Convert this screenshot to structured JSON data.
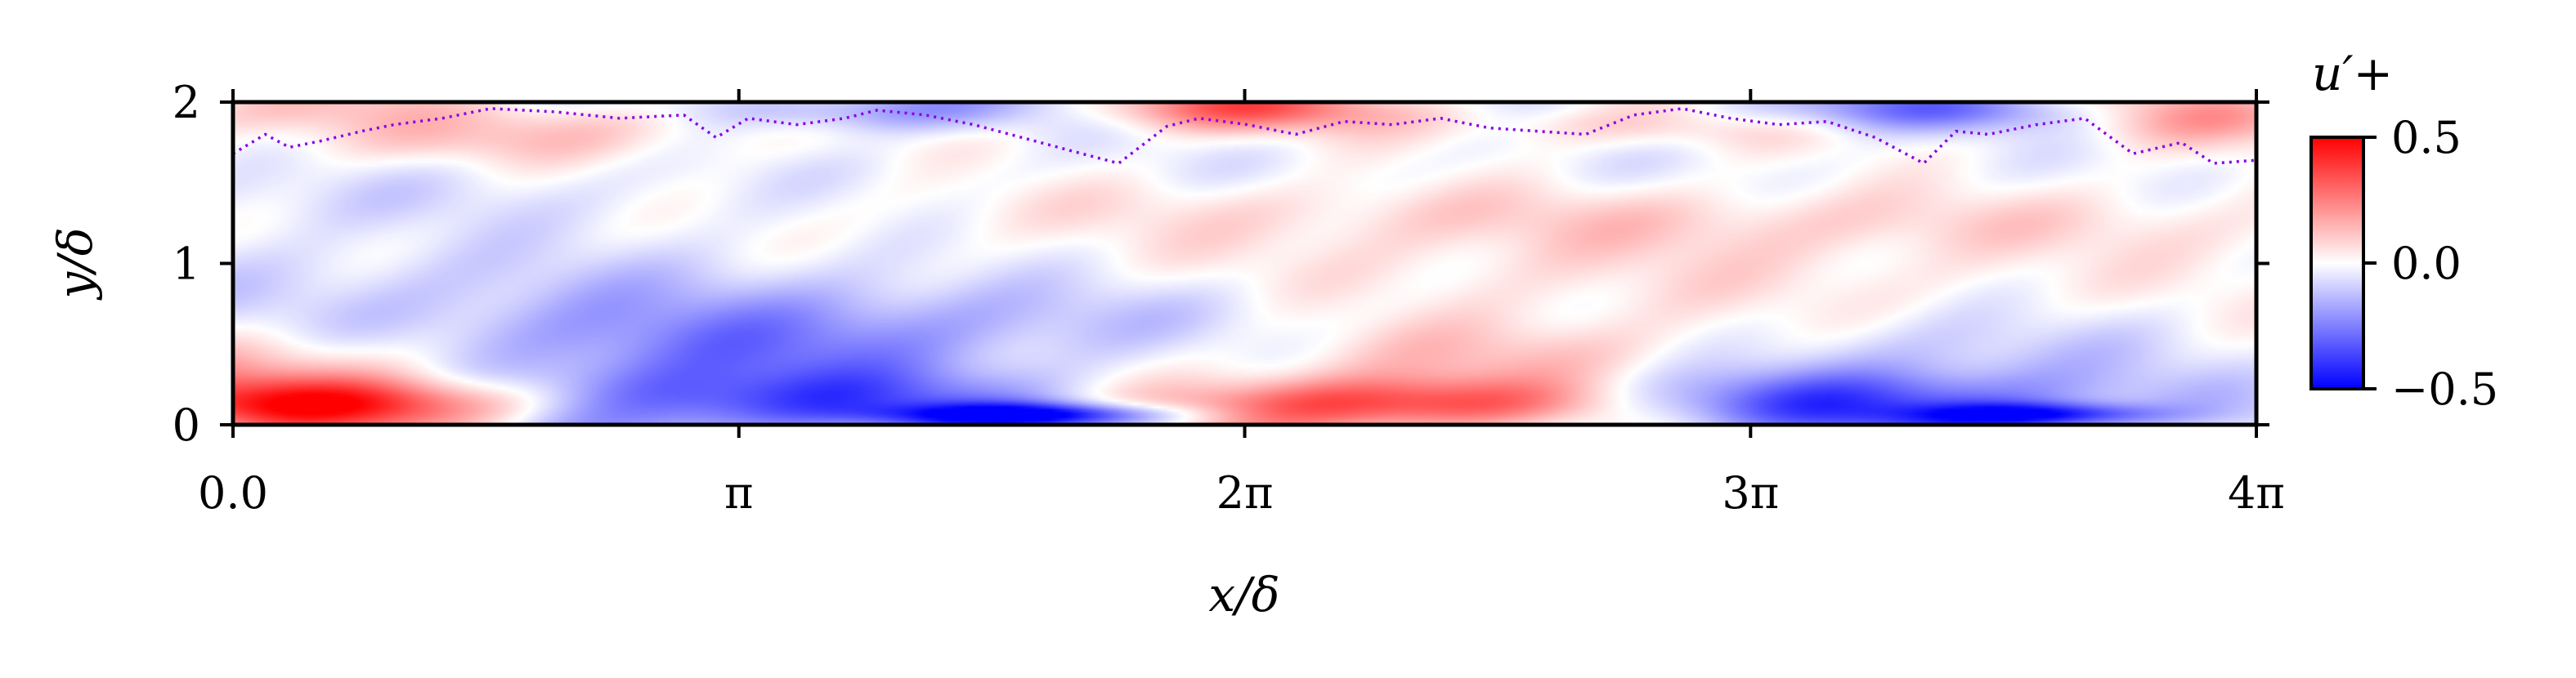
{
  "chart_data": {
    "type": "heatmap",
    "title": "",
    "xlabel": "x/δ",
    "ylabel": "y/δ",
    "xlim": [
      0,
      12.566
    ],
    "ylim": [
      0,
      2
    ],
    "x_tick_labels": [
      "0.0",
      "π",
      "2π",
      "3π",
      "4π"
    ],
    "x_tick_values": [
      0,
      3.1416,
      6.2832,
      9.4248,
      12.566
    ],
    "y_tick_labels": [
      "0",
      "1",
      "2"
    ],
    "y_tick_values": [
      0,
      1,
      2
    ],
    "colormap": [
      "#0000ff",
      "#ffffff",
      "#ff0000"
    ],
    "colorbar": {
      "title": "u′+",
      "range": [
        -0.5,
        0.5
      ],
      "tick_labels": [
        "0.5",
        "0.0",
        "−0.5"
      ],
      "tick_values": [
        0.5,
        0.0,
        -0.5
      ]
    },
    "interface_line": {
      "style": "dotted",
      "color": "#8a00e6",
      "x": [
        0.0,
        0.2,
        0.35,
        0.55,
        0.8,
        1.0,
        1.3,
        1.6,
        2.0,
        2.4,
        2.8,
        3.0,
        3.2,
        3.5,
        3.8,
        4.0,
        4.3,
        4.6,
        4.9,
        5.2,
        5.5,
        5.8,
        6.0,
        6.3,
        6.6,
        6.9,
        7.2,
        7.5,
        7.8,
        8.1,
        8.4,
        8.7,
        9.0,
        9.3,
        9.6,
        9.9,
        10.2,
        10.5,
        10.7,
        10.9,
        11.2,
        11.5,
        11.8,
        12.1,
        12.3,
        12.566
      ],
      "y": [
        1.68,
        1.8,
        1.72,
        1.76,
        1.82,
        1.86,
        1.9,
        1.96,
        1.94,
        1.9,
        1.92,
        1.78,
        1.9,
        1.86,
        1.9,
        1.95,
        1.92,
        1.86,
        1.78,
        1.7,
        1.62,
        1.85,
        1.9,
        1.86,
        1.8,
        1.88,
        1.86,
        1.9,
        1.84,
        1.82,
        1.8,
        1.92,
        1.96,
        1.9,
        1.86,
        1.88,
        1.78,
        1.62,
        1.82,
        1.8,
        1.86,
        1.9,
        1.68,
        1.75,
        1.62,
        1.64
      ]
    },
    "field_features": [
      {
        "x": 0.8,
        "y": 0.12,
        "sx": 1.0,
        "sy": 0.12,
        "value": 0.5
      },
      {
        "x": 7.3,
        "y": 0.12,
        "sx": 1.0,
        "sy": 0.12,
        "value": 0.45
      },
      {
        "x": 3.1,
        "y": 0.12,
        "sx": 1.4,
        "sy": 0.15,
        "value": -0.35
      },
      {
        "x": 9.8,
        "y": 0.12,
        "sx": 1.4,
        "sy": 0.15,
        "value": -0.35
      },
      {
        "x": 5.0,
        "y": 0.06,
        "sx": 0.6,
        "sy": 0.05,
        "value": -0.45
      },
      {
        "x": 11.2,
        "y": 0.06,
        "sx": 0.5,
        "sy": 0.05,
        "value": -0.4
      },
      {
        "x": 0.5,
        "y": 0.35,
        "sx": 1.2,
        "sy": 0.18,
        "value": 0.2
      },
      {
        "x": 2.6,
        "y": 0.4,
        "sx": 1.4,
        "sy": 0.2,
        "value": -0.22
      },
      {
        "x": 8.2,
        "y": 0.4,
        "sx": 1.4,
        "sy": 0.2,
        "value": 0.15
      },
      {
        "x": 10.3,
        "y": 0.42,
        "sx": 1.2,
        "sy": 0.2,
        "value": -0.15
      },
      {
        "x": 4.5,
        "y": 0.65,
        "sx": 2.0,
        "sy": 0.2,
        "value": -0.12
      },
      {
        "x": 1.5,
        "y": 0.85,
        "sx": 2.5,
        "sy": 0.25,
        "value": -0.08
      },
      {
        "x": 8.0,
        "y": 0.9,
        "sx": 2.5,
        "sy": 0.25,
        "value": 0.06
      },
      {
        "x": 2.0,
        "y": 1.4,
        "sx": 3.0,
        "sy": 0.15,
        "value": -0.07
      },
      {
        "x": 5.5,
        "y": 1.4,
        "sx": 2.5,
        "sy": 0.15,
        "value": 0.08
      },
      {
        "x": 9.8,
        "y": 1.25,
        "sx": 2.5,
        "sy": 0.15,
        "value": 0.07
      },
      {
        "x": 7.0,
        "y": 1.55,
        "sx": 3.0,
        "sy": 0.15,
        "value": -0.04
      },
      {
        "x": 6.2,
        "y": 1.96,
        "sx": 0.7,
        "sy": 0.1,
        "value": 0.3
      },
      {
        "x": 4.0,
        "y": 1.95,
        "sx": 0.8,
        "sy": 0.1,
        "value": -0.25
      },
      {
        "x": 10.3,
        "y": 1.95,
        "sx": 1.1,
        "sy": 0.1,
        "value": -0.25
      },
      {
        "x": 12.2,
        "y": 1.92,
        "sx": 0.6,
        "sy": 0.12,
        "value": 0.2
      },
      {
        "x": 2.5,
        "y": 1.9,
        "sx": 0.8,
        "sy": 0.1,
        "value": 0.1
      },
      {
        "x": 0.3,
        "y": 1.93,
        "sx": 0.5,
        "sy": 0.1,
        "value": 0.12
      },
      {
        "x": 1.6,
        "y": 1.75,
        "sx": 1.0,
        "sy": 0.1,
        "value": 0.08
      },
      {
        "x": 8.8,
        "y": 1.88,
        "sx": 0.8,
        "sy": 0.1,
        "value": 0.15
      }
    ]
  }
}
